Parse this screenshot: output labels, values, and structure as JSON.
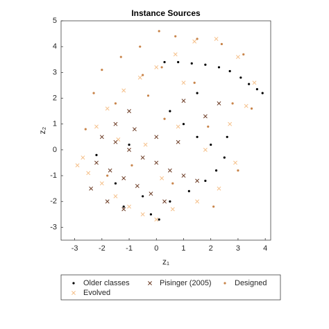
{
  "chart_data": {
    "type": "scatter",
    "title": "Instance Sources",
    "x_label": "z₁",
    "y_label": "z₂",
    "xlim": [
      -3.5,
      4.2
    ],
    "ylim": [
      -3.5,
      5
    ],
    "xticks": [
      -3,
      -2,
      -1,
      0,
      1,
      2,
      3,
      4
    ],
    "yticks": [
      -3,
      -2,
      -1,
      0,
      1,
      2,
      3,
      4,
      5
    ],
    "legend_position": "bottom",
    "series": [
      {
        "name": "Older classes",
        "color": "#000000",
        "marker": "dot",
        "x": [
          0.3,
          0.8,
          1.3,
          1.8,
          2.3,
          2.7,
          3.1,
          3.4,
          3.7,
          3.9,
          0.5,
          1.0,
          1.5,
          2.0,
          2.5,
          2.2,
          1.8,
          1.2,
          0.5,
          -0.5,
          -1.5,
          -2.2,
          -1.0,
          -0.2,
          0.1,
          -1.2,
          2.6,
          1.5
        ],
        "y": [
          3.4,
          3.4,
          3.35,
          3.3,
          3.2,
          3.05,
          2.8,
          2.55,
          2.35,
          2.2,
          1.5,
          1.0,
          0.5,
          0.2,
          -0.3,
          -0.8,
          -1.2,
          -1.6,
          -2.0,
          -1.8,
          -1.3,
          -0.2,
          0.2,
          -2.5,
          -2.7,
          -2.2,
          0.5,
          2.2
        ]
      },
      {
        "name": "Pisinger (2005)",
        "color": "#6b3a23",
        "marker": "x",
        "x": [
          -2.0,
          -1.5,
          -1.0,
          -0.5,
          0.0,
          0.5,
          1.0,
          1.5,
          -2.2,
          -1.7,
          -1.2,
          -0.7,
          -0.2,
          0.3,
          -1.5,
          -0.8,
          0.0,
          0.8,
          -2.4,
          -1.8,
          -1.2,
          1.8,
          2.3,
          1.0,
          -1.0
        ],
        "y": [
          0.5,
          0.3,
          0.0,
          -0.3,
          -0.5,
          -0.8,
          -1.0,
          -1.2,
          -0.5,
          -0.8,
          -1.1,
          -1.4,
          -1.7,
          -2.0,
          1.0,
          0.8,
          0.5,
          0.3,
          -1.5,
          -2.0,
          -2.3,
          1.3,
          1.8,
          1.9,
          1.5
        ]
      },
      {
        "name": "Designed",
        "color": "#c8844a",
        "marker": "dot",
        "x": [
          0.1,
          0.7,
          1.5,
          2.4,
          3.2,
          -0.6,
          -1.3,
          -2.0,
          0.2,
          -0.5,
          1.4,
          2.8,
          3.5,
          -2.3,
          -1.5,
          0.3,
          1.9,
          -2.6,
          -0.9,
          0.6,
          2.1,
          -1.8,
          3.0,
          -0.3
        ],
        "y": [
          4.6,
          4.4,
          4.3,
          4.1,
          3.7,
          4.0,
          3.6,
          3.1,
          3.2,
          2.9,
          2.6,
          1.8,
          1.6,
          2.2,
          1.8,
          1.2,
          0.9,
          0.8,
          -0.6,
          -1.3,
          -2.2,
          -1.0,
          -0.8,
          2.1
        ]
      },
      {
        "name": "Evolved",
        "color": "#f5bf88",
        "marker": "x",
        "x": [
          -2.9,
          -2.5,
          -2.0,
          -1.5,
          -1.0,
          -0.5,
          0.0,
          -2.2,
          -1.8,
          -1.2,
          -0.6,
          0.0,
          0.7,
          1.4,
          2.2,
          3.0,
          3.6,
          3.3,
          2.7,
          2.9,
          2.3,
          1.5,
          0.6,
          -0.4,
          0.8,
          1.8,
          -1.4,
          0.2,
          -2.7,
          1.0
        ],
        "y": [
          -0.6,
          -0.9,
          -1.3,
          -1.8,
          -2.2,
          -2.5,
          -2.7,
          0.9,
          1.6,
          2.3,
          2.8,
          3.2,
          3.7,
          4.2,
          4.3,
          3.6,
          2.6,
          1.7,
          1.0,
          -0.5,
          -1.5,
          -2.0,
          -2.3,
          0.2,
          0.9,
          0.0,
          0.4,
          -1.1,
          -0.3,
          2.6
        ]
      }
    ]
  }
}
